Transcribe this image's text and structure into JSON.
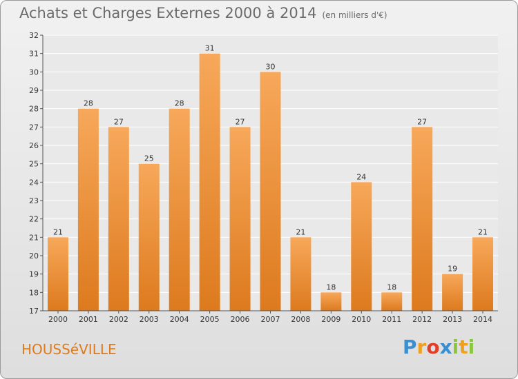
{
  "title": "Achats et Charges Externes 2000 à 2014",
  "unit": "(en milliers d'€)",
  "commune": "HOUSSéVILLE",
  "logo": {
    "text": "Proxiti",
    "letters": [
      {
        "ch": "P",
        "color": "#3a8fd0"
      },
      {
        "ch": "r",
        "color": "#f0a020"
      },
      {
        "ch": "o",
        "color": "#e0402a"
      },
      {
        "ch": "x",
        "color": "#3a8fd0"
      },
      {
        "ch": "i",
        "color": "#8cc63f"
      },
      {
        "ch": "t",
        "color": "#f0a020"
      },
      {
        "ch": "i",
        "color": "#8cc63f"
      }
    ]
  },
  "colors": {
    "bar_top": "#f7a85a",
    "bar_bottom": "#dd7a1e",
    "axis": "#555555",
    "grid": "#ffffff",
    "text": "#333333"
  },
  "chart_data": {
    "type": "bar",
    "categories": [
      "2000",
      "2001",
      "2002",
      "2003",
      "2004",
      "2005",
      "2006",
      "2007",
      "2008",
      "2009",
      "2010",
      "2011",
      "2012",
      "2013",
      "2014"
    ],
    "values": [
      21,
      28,
      27,
      25,
      28,
      31,
      27,
      30,
      21,
      18,
      24,
      18,
      27,
      19,
      21
    ],
    "title": "Achats et Charges Externes 2000 à 2014",
    "ylim": [
      17,
      32
    ],
    "yticks": [
      17,
      18,
      19,
      20,
      21,
      22,
      23,
      24,
      25,
      26,
      27,
      28,
      29,
      30,
      31,
      32
    ],
    "grid": true
  }
}
